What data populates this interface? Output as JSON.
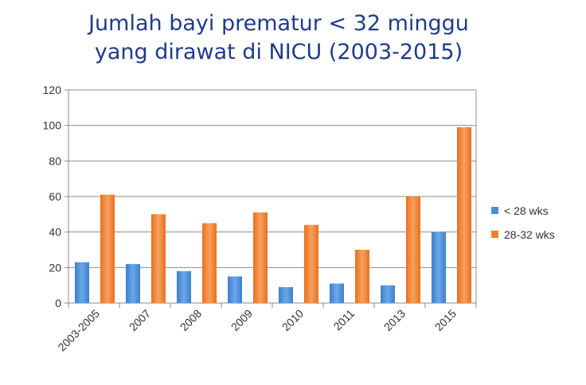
{
  "chart_data": {
    "type": "bar",
    "title_line1": "Jumlah bayi prematur < 32 minggu",
    "title_line2": "yang dirawat di NICU (2003-2015)",
    "categories": [
      "2003-2005",
      "2007",
      "2008",
      "2009",
      "2010",
      "2011",
      "2013",
      "2015"
    ],
    "series": [
      {
        "name": "< 28 wks",
        "color": "#4a8ed6",
        "values": [
          23,
          22,
          18,
          15,
          9,
          11,
          10,
          40
        ]
      },
      {
        "name": "28-32 wks",
        "color": "#f07f2b",
        "values": [
          61,
          50,
          45,
          51,
          44,
          30,
          60,
          99
        ]
      }
    ],
    "ylim": [
      0,
      120
    ],
    "yticks": [
      0,
      20,
      40,
      60,
      80,
      100,
      120
    ],
    "grid": true,
    "legend_position": "right"
  }
}
